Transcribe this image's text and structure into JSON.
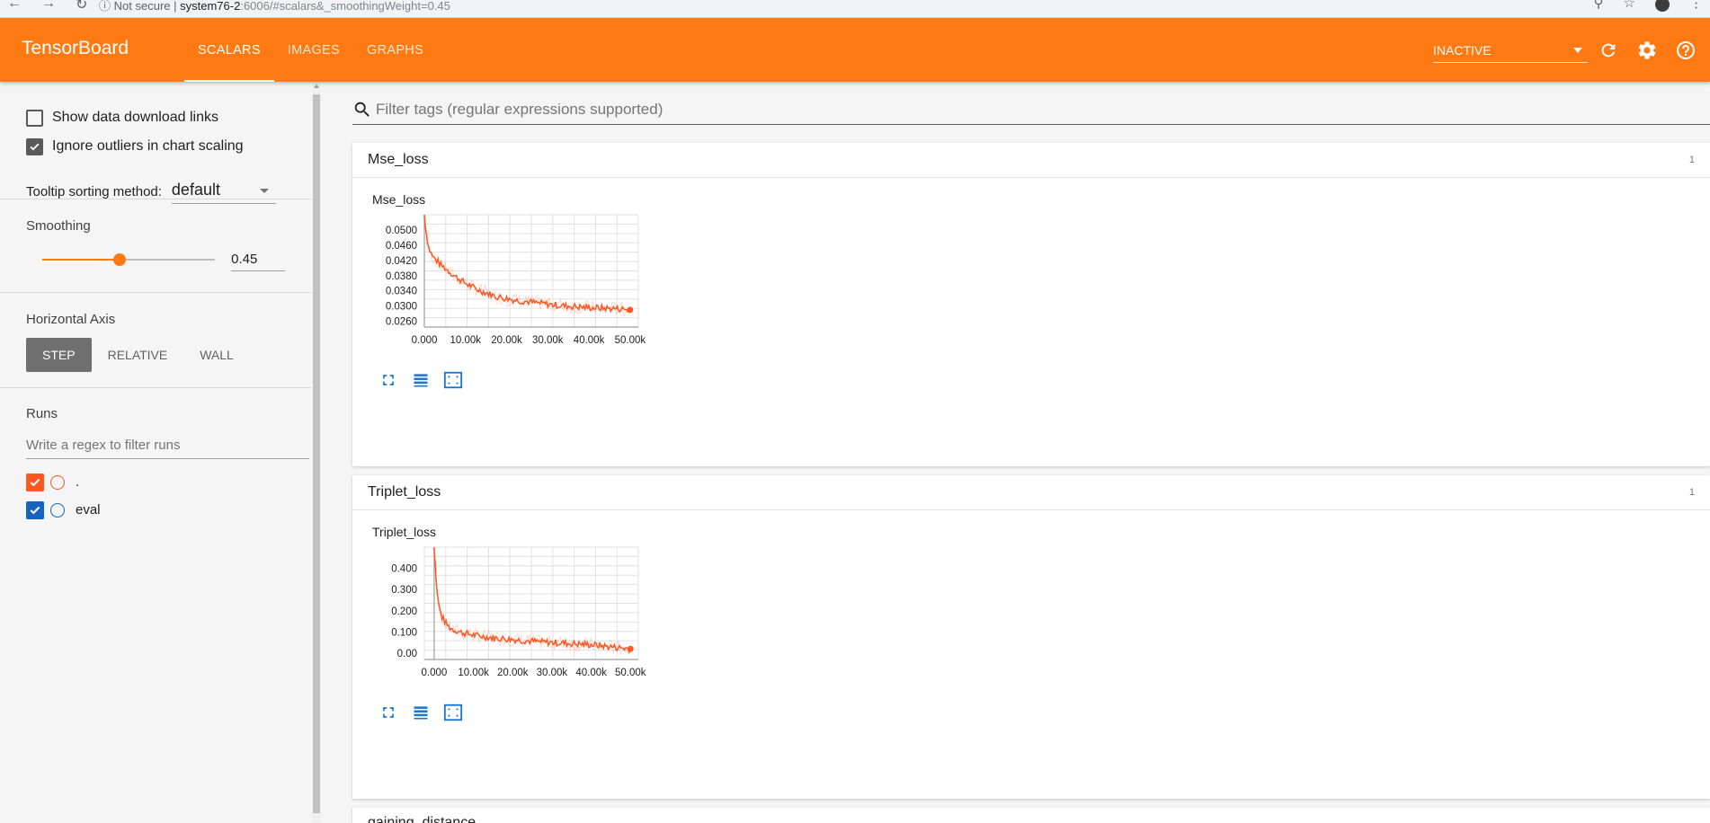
{
  "browser": {
    "security": "Not secure",
    "host": "system76-2",
    "path": ":6006/#scalars&_smoothingWeight=0.45"
  },
  "app": {
    "brand": "TensorBoard",
    "tabs": [
      {
        "label": "SCALARS",
        "active": true
      },
      {
        "label": "IMAGES",
        "active": false
      },
      {
        "label": "GRAPHS",
        "active": false
      }
    ],
    "inactive_select": "INACTIVE",
    "accent": "#ff7a12"
  },
  "sidebar": {
    "show_download": "Show data download links",
    "show_download_checked": false,
    "ignore_outliers": "Ignore outliers in chart scaling",
    "ignore_outliers_checked": true,
    "tooltip_label": "Tooltip sorting method:",
    "tooltip_value": "default",
    "smoothing_label": "Smoothing",
    "smoothing_value": "0.45",
    "smoothing_fraction": 0.45,
    "horizontal_axis_label": "Horizontal Axis",
    "axis_options": [
      {
        "label": "STEP",
        "active": true
      },
      {
        "label": "RELATIVE",
        "active": false
      },
      {
        "label": "WALL",
        "active": false
      }
    ],
    "runs_label": "Runs",
    "runs_filter_placeholder": "Write a regex to filter runs",
    "runs": [
      {
        "name": ".",
        "color": "#ff5722",
        "checked": true
      },
      {
        "name": "eval",
        "color": "#1565c0",
        "checked": true
      }
    ]
  },
  "main": {
    "filter_placeholder": "Filter tags (regular expressions supported)",
    "cards": [
      {
        "title": "Mse_loss",
        "count": "1",
        "chart_title": "Mse_loss"
      },
      {
        "title": "Triplet_loss",
        "count": "1",
        "chart_title": "Triplet_loss"
      }
    ],
    "third_card_title": "gaining_distance"
  },
  "chart_data": [
    {
      "type": "line",
      "title": "Mse_loss",
      "xlabel": "",
      "ylabel": "",
      "xlim": [
        0,
        52000
      ],
      "ylim": [
        0.0245,
        0.054
      ],
      "xticks": [
        0,
        10000,
        20000,
        30000,
        40000,
        50000
      ],
      "xtick_labels": [
        "0.000",
        "10.00k",
        "20.00k",
        "30.00k",
        "40.00k",
        "50.00k"
      ],
      "yticks": [
        0.026,
        0.03,
        0.034,
        0.038,
        0.042,
        0.046,
        0.05
      ],
      "ytick_labels": [
        "0.0260",
        "0.0300",
        "0.0340",
        "0.0380",
        "0.0420",
        "0.0460",
        "0.0500"
      ],
      "grid": true,
      "series": [
        {
          "color": "#ff5722",
          "x": [
            0,
            500,
            1000,
            2000,
            3000,
            4000,
            5000,
            7500,
            10000,
            12500,
            15000,
            17500,
            20000,
            22500,
            25000,
            27500,
            30000,
            32500,
            35000,
            37500,
            40000,
            42500,
            45000,
            47500,
            50000
          ],
          "y": [
            0.054,
            0.049,
            0.0455,
            0.043,
            0.042,
            0.0408,
            0.04,
            0.0378,
            0.036,
            0.0345,
            0.0335,
            0.0325,
            0.032,
            0.0315,
            0.0312,
            0.0308,
            0.0305,
            0.0302,
            0.03,
            0.0298,
            0.0296,
            0.0295,
            0.0294,
            0.0293,
            0.029
          ]
        }
      ]
    },
    {
      "type": "line",
      "title": "Triplet_loss",
      "xlabel": "",
      "ylabel": "",
      "xlim": [
        -2500,
        52000
      ],
      "ylim": [
        -0.03,
        0.5
      ],
      "xticks": [
        0,
        10000,
        20000,
        30000,
        40000,
        50000
      ],
      "xtick_labels": [
        "0.000",
        "10.00k",
        "20.00k",
        "30.00k",
        "40.00k",
        "50.00k"
      ],
      "yticks": [
        0.0,
        0.1,
        0.2,
        0.3,
        0.4
      ],
      "ytick_labels": [
        "0.00",
        "0.100",
        "0.200",
        "0.300",
        "0.400"
      ],
      "grid": true,
      "series": [
        {
          "color": "#ff5722",
          "x": [
            0,
            300,
            600,
            1000,
            1500,
            2000,
            3000,
            4000,
            5000,
            7500,
            10000,
            12500,
            15000,
            17500,
            20000,
            22500,
            25000,
            27500,
            30000,
            32500,
            35000,
            37500,
            40000,
            42500,
            45000,
            47500,
            50000
          ],
          "y": [
            0.5,
            0.42,
            0.32,
            0.25,
            0.2,
            0.17,
            0.14,
            0.12,
            0.11,
            0.095,
            0.085,
            0.078,
            0.072,
            0.068,
            0.065,
            0.06,
            0.056,
            0.052,
            0.05,
            0.048,
            0.045,
            0.042,
            0.04,
            0.035,
            0.03,
            0.025,
            0.02
          ]
        }
      ]
    }
  ]
}
